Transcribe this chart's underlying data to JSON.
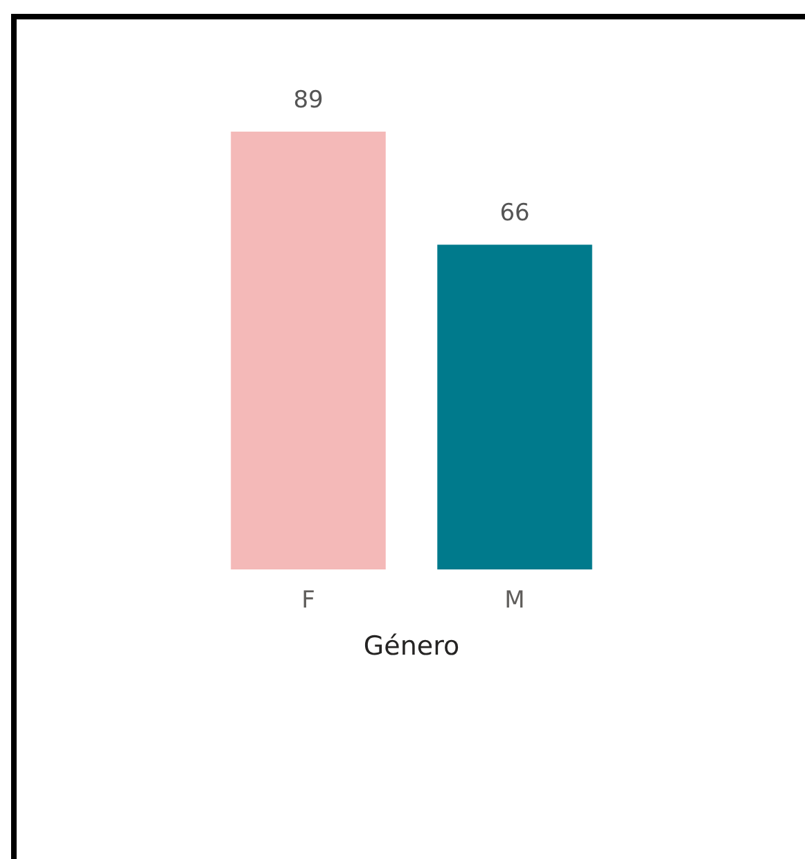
{
  "chart_data": {
    "type": "bar",
    "xlabel": "Género",
    "categories": [
      "F",
      "M"
    ],
    "values": [
      89,
      66
    ],
    "colors": [
      "#f4b9b8",
      "#007a8c"
    ],
    "data_labels": true
  }
}
